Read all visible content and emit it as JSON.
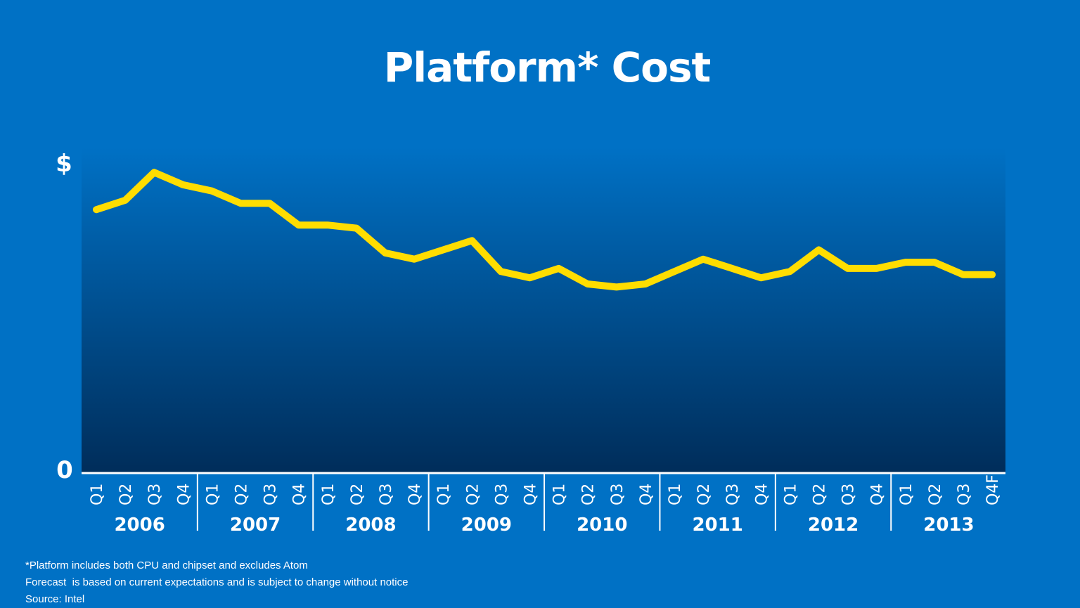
{
  "title": "Platform* Cost",
  "chart_data": {
    "type": "line",
    "title": "Platform* Cost",
    "y_axis": {
      "top_label": "$",
      "bottom_label": "0",
      "ylim": [
        0,
        100
      ]
    },
    "years": [
      "2006",
      "2007",
      "2008",
      "2009",
      "2010",
      "2011",
      "2012",
      "2013"
    ],
    "quarter_labels": [
      "Q1",
      "Q2",
      "Q3",
      "Q4",
      "Q1",
      "Q2",
      "Q3",
      "Q4",
      "Q1",
      "Q2",
      "Q3",
      "Q4",
      "Q1",
      "Q2",
      "Q3",
      "Q4",
      "Q1",
      "Q2",
      "Q3",
      "Q4",
      "Q1",
      "Q2",
      "Q3",
      "Q4",
      "Q1",
      "Q2",
      "Q3",
      "Q4",
      "Q1",
      "Q2",
      "Q3",
      "Q4F"
    ],
    "series": [
      {
        "color": "#ffdd00",
        "values": [
          85,
          88,
          97,
          93,
          91,
          87,
          87,
          80,
          80,
          79,
          71,
          69,
          72,
          75,
          65,
          63,
          66,
          61,
          60,
          61,
          65,
          69,
          66,
          63,
          65,
          72,
          66,
          66,
          68,
          68,
          64,
          64
        ]
      }
    ],
    "colors": {
      "background": "#0071c5",
      "plot_top": "#0071c5",
      "plot_bottom": "#002d5a",
      "line": "#ffdd00",
      "axis": "#ffffff"
    }
  },
  "footnotes": [
    "*Platform includes both CPU and chipset and excludes Atom",
    "Forecast  is based on current expectations and is subject to change without notice",
    "Source: Intel"
  ]
}
